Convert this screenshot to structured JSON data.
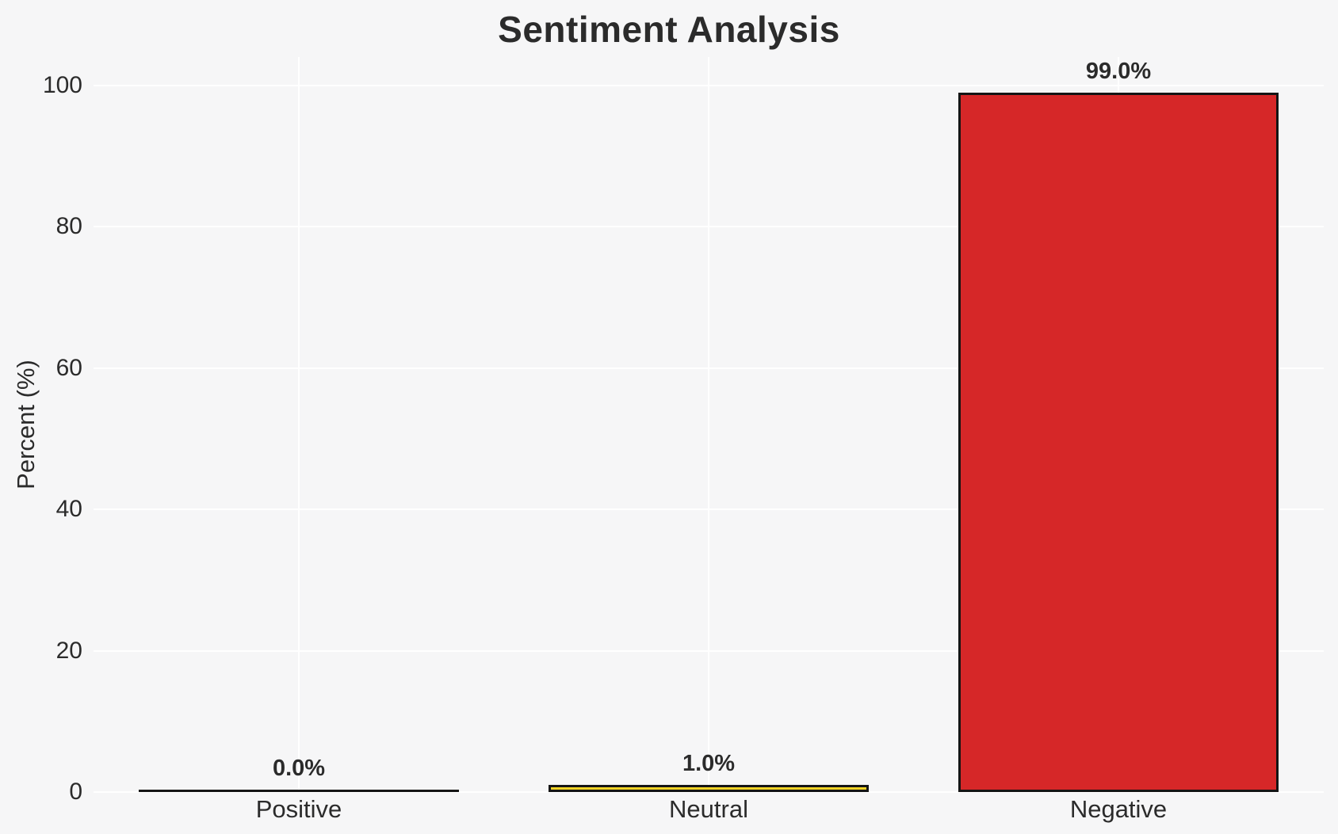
{
  "chart_data": {
    "type": "bar",
    "title": "Sentiment Analysis",
    "ylabel": "Percent (%)",
    "xlabel": "",
    "categories": [
      "Positive",
      "Neutral",
      "Negative"
    ],
    "values": [
      0.0,
      1.0,
      99.0
    ],
    "value_labels": [
      "0.0%",
      "1.0%",
      "99.0%"
    ],
    "bar_colors": [
      "#2ca02c",
      "#f5d327",
      "#d62728"
    ],
    "bar_edge_color": "#151515",
    "yticks": [
      0,
      20,
      40,
      60,
      80,
      100
    ],
    "ylim": [
      0,
      104
    ],
    "grid": true,
    "legend": "none",
    "background_color": "#f6f6f7",
    "grid_color": "#ffffff",
    "text_color": "#2b2b2b"
  }
}
